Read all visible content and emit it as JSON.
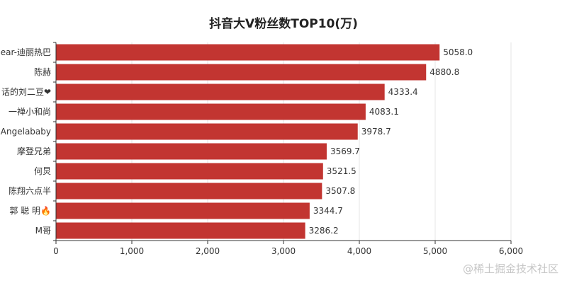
{
  "chart_data": {
    "type": "bar",
    "orientation": "horizontal",
    "title": "抖音大V粉丝数TOP10(万)",
    "categories": [
      "ear-迪丽热巴",
      "陈赫",
      "话的刘二豆❤",
      "一禅小和尚",
      "Angelababy",
      "摩登兄弟",
      "何炅",
      "陈翔六点半",
      "郭 聪 明🔥",
      "M哥"
    ],
    "values": [
      5058.0,
      4880.8,
      4333.4,
      4083.1,
      3978.7,
      3569.7,
      3521.5,
      3507.8,
      3344.7,
      3286.2
    ],
    "value_labels": [
      "5058.0",
      "4880.8",
      "4333.4",
      "4083.1",
      "3978.7",
      "3569.7",
      "3521.5",
      "3507.8",
      "3344.7",
      "3286.2"
    ],
    "xlim": [
      0,
      6000
    ],
    "x_ticks": [
      0,
      1000,
      2000,
      3000,
      4000,
      5000,
      6000
    ],
    "x_tick_labels": [
      "0",
      "1,000",
      "2,000",
      "3,000",
      "4,000",
      "5,000",
      "6,000"
    ],
    "xlabel": "",
    "ylabel": "",
    "grid": true,
    "bar_color": "#c23531",
    "grid_color": "#e6e6e6",
    "axis_color": "#333333"
  },
  "watermark": "@稀土掘金技术社区"
}
